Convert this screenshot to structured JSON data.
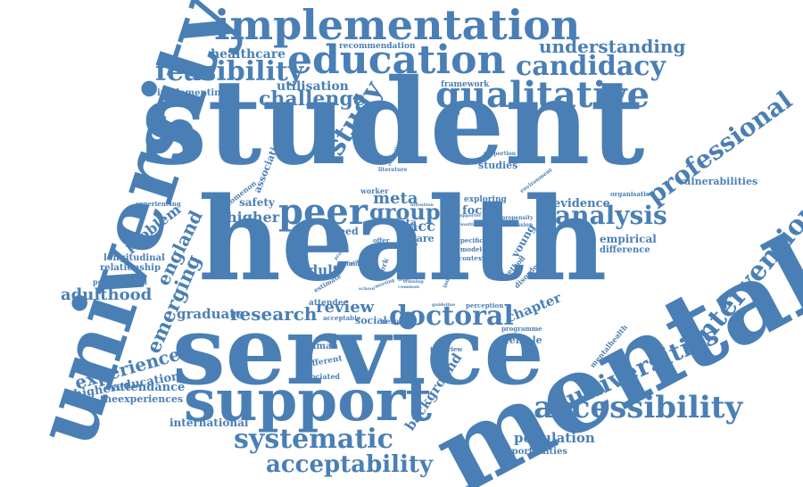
{
  "color": "#4a7fb5",
  "words": [
    {
      "text": "student",
      "weight": 100
    },
    {
      "text": "health",
      "weight": 100
    },
    {
      "text": "service",
      "weight": 85
    },
    {
      "text": "mental",
      "weight": 100
    },
    {
      "text": "university",
      "weight": 80
    },
    {
      "text": "support",
      "weight": 55
    },
    {
      "text": "implementation",
      "weight": 45
    },
    {
      "text": "education",
      "weight": 45
    },
    {
      "text": "qualitative",
      "weight": 40
    },
    {
      "text": "candidacy",
      "weight": 30
    },
    {
      "text": "feasibility",
      "weight": 30
    },
    {
      "text": "understanding",
      "weight": 22
    },
    {
      "text": "professional",
      "weight": 28
    },
    {
      "text": "intervention",
      "weight": 30
    },
    {
      "text": "universities",
      "weight": 28
    },
    {
      "text": "accessibility",
      "weight": 35
    },
    {
      "text": "systematic",
      "weight": 32
    },
    {
      "text": "acceptability",
      "weight": 28
    },
    {
      "text": "doctoral",
      "weight": 30
    },
    {
      "text": "peer",
      "weight": 40
    },
    {
      "text": "analysis",
      "weight": 28
    },
    {
      "text": "study",
      "weight": 30
    },
    {
      "text": "challenge",
      "weight": 22
    },
    {
      "text": "healthcare",
      "weight": 15
    },
    {
      "text": "utilisation",
      "weight": 15
    },
    {
      "text": "implementing",
      "weight": 10
    },
    {
      "text": "recommendation",
      "weight": 9
    },
    {
      "text": "framework",
      "weight": 9
    },
    {
      "text": "association",
      "weight": 11
    },
    {
      "text": "phenomenon",
      "weight": 9
    },
    {
      "text": "safety",
      "weight": 12
    },
    {
      "text": "higher",
      "weight": 18
    },
    {
      "text": "problem",
      "weight": 16
    },
    {
      "text": "england",
      "weight": 20
    },
    {
      "text": "emerging",
      "weight": 22
    },
    {
      "text": "longitudinal",
      "weight": 11
    },
    {
      "text": "relationship",
      "weight": 11
    },
    {
      "text": "adulthood",
      "weight": 20
    },
    {
      "text": "graduate",
      "weight": 16
    },
    {
      "text": "research",
      "weight": 22
    },
    {
      "text": "experience",
      "weight": 20
    },
    {
      "text": "highereducation",
      "weight": 14
    },
    {
      "text": "attendance",
      "weight": 14
    },
    {
      "text": "theexperiences",
      "weight": 12
    },
    {
      "text": "international",
      "weight": 14
    },
    {
      "text": "review",
      "weight": 22
    },
    {
      "text": "group",
      "weight": 28
    },
    {
      "text": "meta",
      "weight": 20
    },
    {
      "text": "acc",
      "weight": 16
    },
    {
      "text": "care",
      "weight": 12
    },
    {
      "text": "focus",
      "weight": 14
    },
    {
      "text": "evidence",
      "weight": 14
    },
    {
      "text": "vulnerabilities",
      "weight": 12
    },
    {
      "text": "organisation",
      "weight": 8
    },
    {
      "text": "empirical",
      "weight": 12
    },
    {
      "text": "difference",
      "weight": 11
    },
    {
      "text": "adult",
      "weight": 16
    },
    {
      "text": "need",
      "weight": 12
    },
    {
      "text": "attendee",
      "weight": 10
    },
    {
      "text": "social",
      "weight": 12
    },
    {
      "text": "resource",
      "weight": 9
    },
    {
      "text": "acceptable",
      "weight": 8
    },
    {
      "text": "human",
      "weight": 11
    },
    {
      "text": "different",
      "weight": 10
    },
    {
      "text": "associated",
      "weight": 9
    },
    {
      "text": "interview",
      "weight": 8
    },
    {
      "text": "background",
      "weight": 16
    },
    {
      "text": "chapter",
      "weight": 16
    },
    {
      "text": "female",
      "weight": 11
    },
    {
      "text": "programme",
      "weight": 8
    },
    {
      "text": "mentalhealth",
      "weight": 9
    },
    {
      "text": "population",
      "weight": 16
    },
    {
      "text": "opportunities",
      "weight": 11
    },
    {
      "text": "studies",
      "weight": 12
    },
    {
      "text": "exploring",
      "weight": 10
    },
    {
      "text": "worker",
      "weight": 9
    },
    {
      "text": "young",
      "weight": 12
    },
    {
      "text": "data",
      "weight": 12
    },
    {
      "text": "experiencing",
      "weight": 8
    },
    {
      "text": "psychological",
      "weight": 9
    },
    {
      "text": "perception",
      "weight": 8
    },
    {
      "text": "estimate",
      "weight": 8
    },
    {
      "text": "finding",
      "weight": 8
    },
    {
      "text": "method",
      "weight": 9
    },
    {
      "text": "disorder",
      "weight": 9
    },
    {
      "text": "specific",
      "weight": 8
    },
    {
      "text": "model",
      "weight": 8
    },
    {
      "text": "context",
      "weight": 8
    },
    {
      "text": "offer",
      "weight": 7
    },
    {
      "text": "attention",
      "weight": 6
    },
    {
      "text": "supporter",
      "weight": 6
    },
    {
      "text": "multiple",
      "weight": 6
    },
    {
      "text": "propensity",
      "weight": 7
    },
    {
      "text": "discussion",
      "weight": 7
    },
    {
      "text": "environment",
      "weight": 7
    },
    {
      "text": "literature",
      "weight": 7
    },
    {
      "text": "proportion",
      "weight": 7
    },
    {
      "text": "reputation",
      "weight": 6
    },
    {
      "text": "individual",
      "weight": 7
    },
    {
      "text": "setting",
      "weight": 6
    },
    {
      "text": "level",
      "weight": 6
    },
    {
      "text": "common",
      "weight": 6
    },
    {
      "text": "training",
      "weight": 6
    },
    {
      "text": "work",
      "weight": 8
    },
    {
      "text": "cohort",
      "weight": 7
    },
    {
      "text": "male",
      "weight": 7
    },
    {
      "text": "practice",
      "weight": 6
    },
    {
      "text": "meeting",
      "weight": 6
    },
    {
      "text": "guideline",
      "weight": 6
    },
    {
      "text": "school",
      "weight": 6
    },
    {
      "text": "provider",
      "weight": 6
    },
    {
      "text": "wider",
      "weight": 5
    }
  ]
}
